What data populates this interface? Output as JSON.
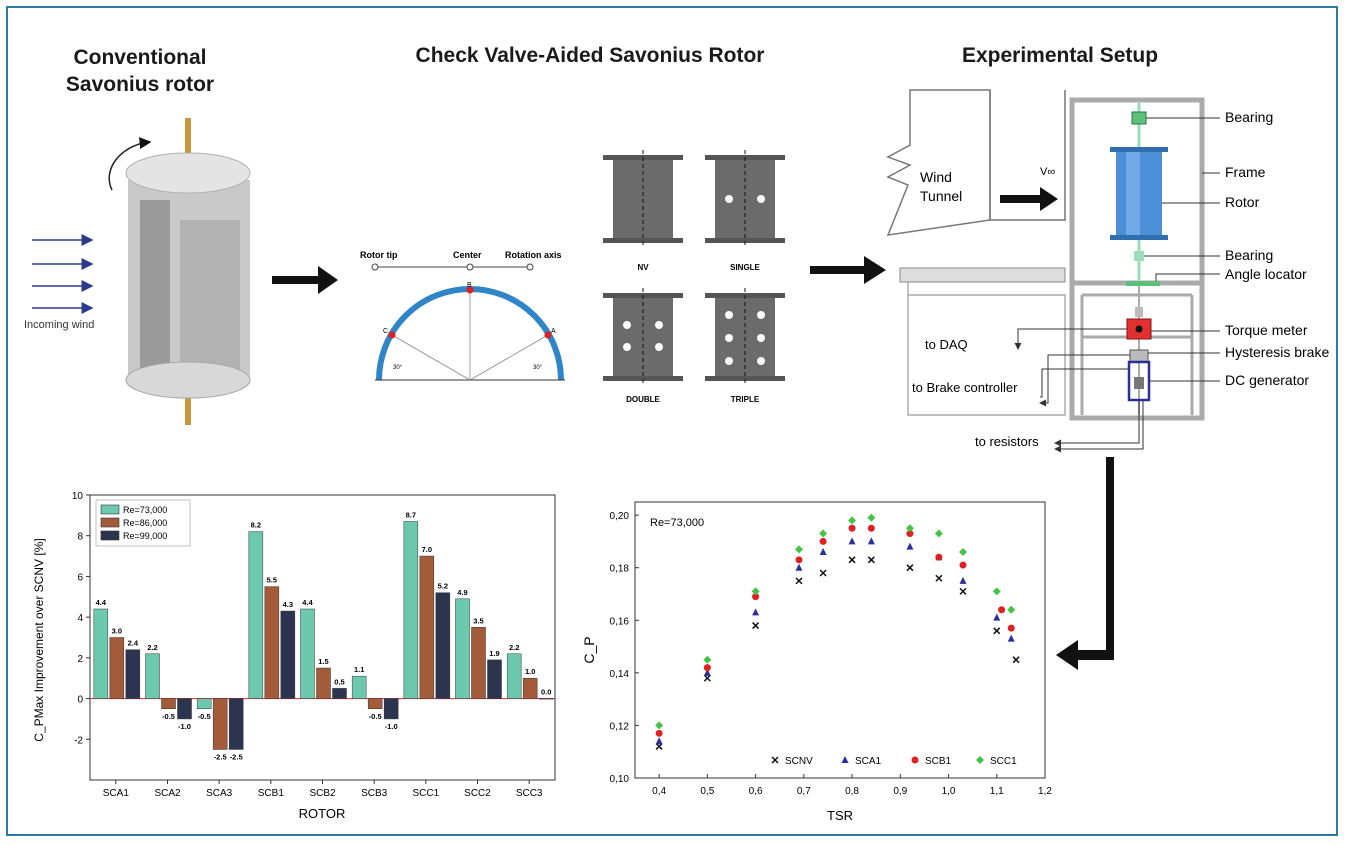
{
  "titles": {
    "conventional_line1": "Conventional",
    "conventional_line2": "Savonius rotor",
    "checkvalve": "Check Valve-Aided Savonius Rotor",
    "setup": "Experimental Setup"
  },
  "conventional": {
    "wind_label": "Incoming wind"
  },
  "blade": {
    "rotor_tip": "Rotor tip",
    "center": "Center",
    "rotation_axis": "Rotation axis",
    "point_a": "A",
    "point_b": "B",
    "point_c": "C",
    "angle_left": "30°",
    "angle_right": "30°"
  },
  "configs": [
    "NV",
    "SINGLE",
    "DOUBLE",
    "TRIPLE"
  ],
  "setup": {
    "wind_tunnel_line1": "Wind",
    "wind_tunnel_line2": "Tunnel",
    "velocity": "V∞",
    "bearing_top": "Bearing",
    "frame": "Frame",
    "rotor": "Rotor",
    "bearing_bottom": "Bearing",
    "angle_locator": "Angle locator",
    "torque_meter": "Torque meter",
    "hysteresis_brake": "Hysteresis brake",
    "dc_generator": "DC generator",
    "to_daq": "to DAQ",
    "to_brake": "to Brake controller",
    "to_resistors": "to resistors"
  },
  "colors": {
    "frame_border": "#2f78a8",
    "bar_re73": "#6cc9ad",
    "bar_re86": "#a35b3a",
    "bar_re99": "#2d3450",
    "zero_line": "#e84040",
    "scnv": "#111111",
    "sca1": "#2b2f9c",
    "scb1": "#e02020",
    "scc1": "#44c444"
  },
  "chart_data": [
    {
      "type": "bar",
      "title": "",
      "xlabel": "ROTOR",
      "ylabel": "C_PMax Improvement over SCNV [%]",
      "ylim": [
        -4,
        10
      ],
      "yticks": [
        -2,
        0,
        2,
        4,
        6,
        8,
        10
      ],
      "legend_position": "top-left",
      "categories": [
        "SCA1",
        "SCA2",
        "SCA3",
        "SCB1",
        "SCB2",
        "SCB3",
        "SCC1",
        "SCC2",
        "SCC3"
      ],
      "series": [
        {
          "name": "Re=73,000",
          "values": [
            4.4,
            2.2,
            -0.5,
            8.2,
            4.4,
            1.1,
            8.7,
            4.9,
            2.2
          ],
          "labels": [
            "4.4",
            "2.2",
            "-0.5",
            "8.2",
            "4.4",
            "1.1",
            "8.7",
            "4.9",
            "2.2"
          ]
        },
        {
          "name": "Re=86,000",
          "values": [
            3.0,
            -0.5,
            -2.5,
            5.5,
            1.5,
            -0.5,
            7.0,
            3.5,
            1.0
          ],
          "labels": [
            "3.0",
            "-0.5",
            "-2.5",
            "5.5",
            "1.5",
            "-0.5",
            "7.0",
            "3.5",
            "1.0"
          ]
        },
        {
          "name": "Re=99,000",
          "values": [
            2.4,
            -1.0,
            -2.5,
            4.3,
            0.5,
            -1.0,
            5.2,
            1.9,
            0.0
          ],
          "labels": [
            "2.4",
            "-1.0",
            "-2.5",
            "4.3",
            "0.5",
            "-1.0",
            "5.2",
            "1.9",
            "0.0"
          ]
        }
      ]
    },
    {
      "type": "scatter",
      "title": "",
      "annotation": "Re=73,000",
      "xlabel": "TSR",
      "ylabel": "C_P",
      "xlim": [
        0.35,
        1.2
      ],
      "ylim": [
        0.1,
        0.205
      ],
      "xticks": [
        "0,4",
        "0,5",
        "0,6",
        "0,7",
        "0,8",
        "0,9",
        "1,0",
        "1,1",
        "1,2"
      ],
      "yticks": [
        "0,10",
        "0,12",
        "0,14",
        "0,16",
        "0,18",
        "0,20"
      ],
      "legend_position": "bottom-right",
      "series": [
        {
          "name": "SCNV",
          "marker": "x",
          "x": [
            0.4,
            0.5,
            0.6,
            0.69,
            0.74,
            0.8,
            0.84,
            0.92,
            0.98,
            1.03,
            1.1,
            1.14
          ],
          "y": [
            0.112,
            0.138,
            0.158,
            0.175,
            0.178,
            0.183,
            0.183,
            0.18,
            0.176,
            0.171,
            0.156,
            0.145
          ]
        },
        {
          "name": "SCA1",
          "marker": "triangle",
          "x": [
            0.4,
            0.5,
            0.6,
            0.69,
            0.74,
            0.8,
            0.84,
            0.92,
            0.98,
            1.03,
            1.1,
            1.13
          ],
          "y": [
            0.114,
            0.14,
            0.163,
            0.18,
            0.186,
            0.19,
            0.19,
            0.188,
            0.184,
            0.175,
            0.161,
            0.153
          ]
        },
        {
          "name": "SCB1",
          "marker": "circle",
          "x": [
            0.4,
            0.5,
            0.6,
            0.69,
            0.74,
            0.8,
            0.84,
            0.92,
            0.98,
            1.03,
            1.11,
            1.13
          ],
          "y": [
            0.117,
            0.142,
            0.169,
            0.183,
            0.19,
            0.195,
            0.195,
            0.193,
            0.184,
            0.181,
            0.164,
            0.157
          ]
        },
        {
          "name": "SCC1",
          "marker": "diamond",
          "x": [
            0.4,
            0.5,
            0.6,
            0.69,
            0.74,
            0.8,
            0.84,
            0.92,
            0.98,
            1.03,
            1.1,
            1.13
          ],
          "y": [
            0.12,
            0.145,
            0.171,
            0.187,
            0.193,
            0.198,
            0.199,
            0.195,
            0.193,
            0.186,
            0.171,
            0.164
          ]
        }
      ]
    }
  ]
}
